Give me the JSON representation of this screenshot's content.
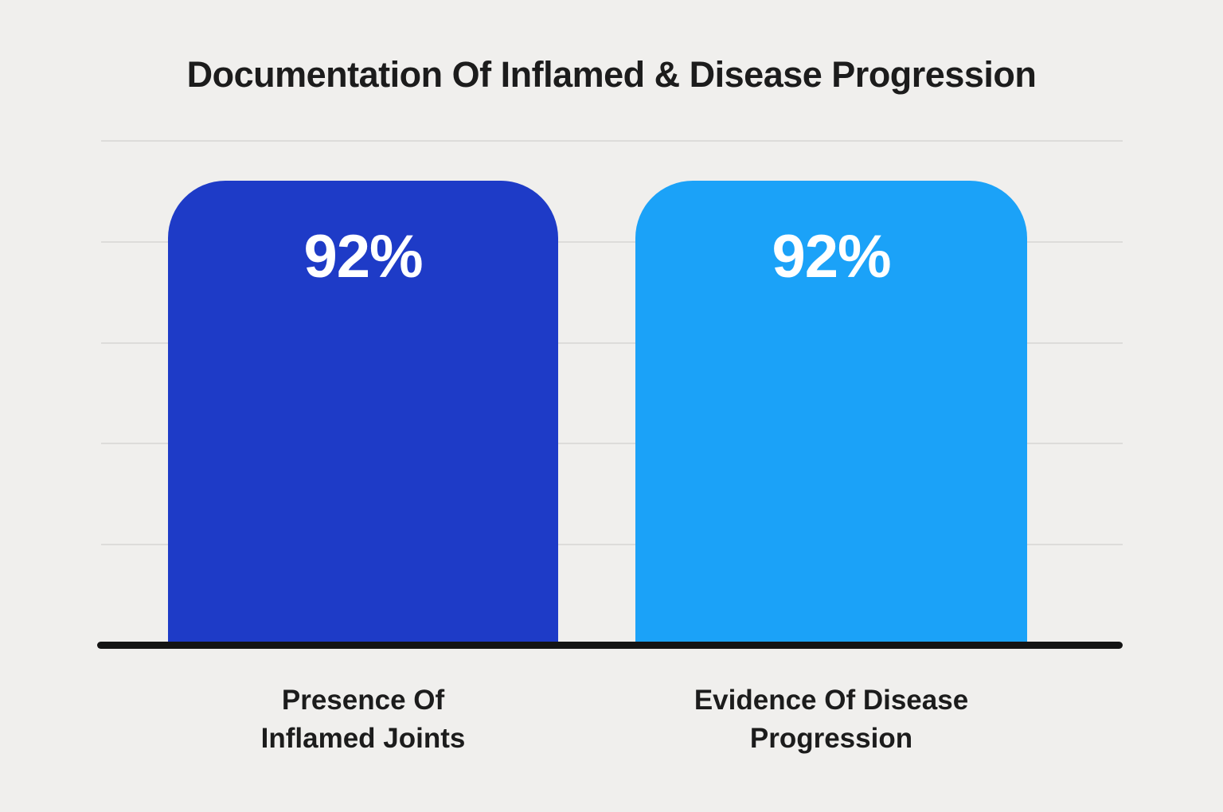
{
  "chart_data": {
    "type": "bar",
    "title": "Documentation Of Inflamed & Disease Progression",
    "categories": [
      "Presence Of\nInflamed Joints",
      "Evidence Of Disease\nProgression"
    ],
    "values": [
      92,
      92
    ],
    "value_labels": [
      "92%",
      "92%"
    ],
    "bar_colors": [
      "#1e3bc7",
      "#1ba2f8"
    ],
    "ylabel": "",
    "xlabel": "",
    "ylim": [
      0,
      100
    ],
    "grid": true,
    "gridline_color": "#dddcda",
    "background_color": "#f0efed",
    "baseline_color": "#141414",
    "legend": "none"
  }
}
